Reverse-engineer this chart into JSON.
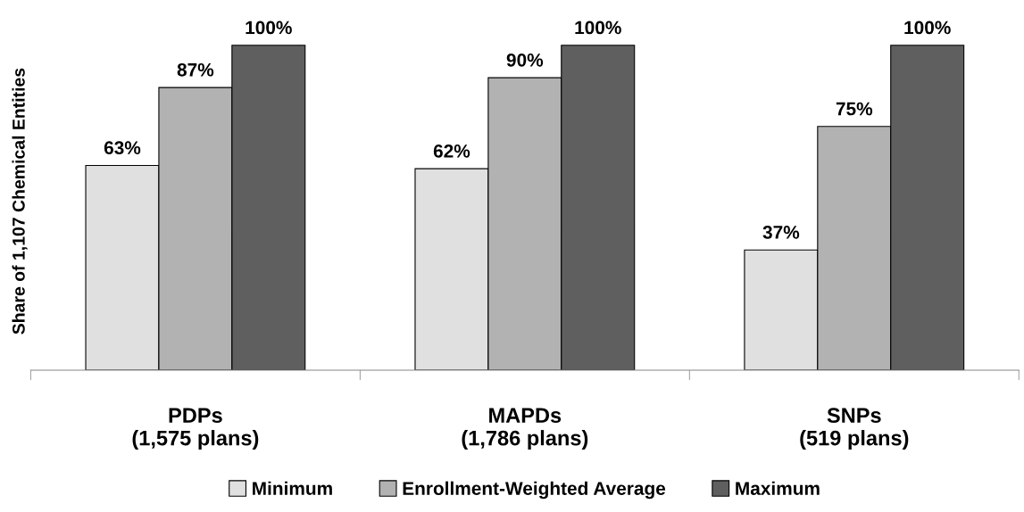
{
  "chart_data": {
    "type": "bar",
    "ylabel": "Share of 1,107 Chemical Entities",
    "categories": [
      "PDPs\n(1,575 plans)",
      "MAPDs\n(1,786 plans)",
      "SNPs\n(519 plans)"
    ],
    "series": [
      {
        "name": "Minimum",
        "color": "#e0e0e0",
        "values": [
          63,
          62,
          37
        ],
        "value_labels": [
          "63%",
          "62%",
          "37%"
        ]
      },
      {
        "name": "Enrollment-Weighted Average",
        "color": "#b2b2b2",
        "values": [
          87,
          90,
          75
        ],
        "value_labels": [
          "87%",
          "90%",
          "75%"
        ]
      },
      {
        "name": "Maximum",
        "color": "#5f5f5f",
        "values": [
          100,
          100,
          100
        ],
        "value_labels": [
          "100%",
          "100%",
          "100%"
        ]
      }
    ],
    "legend": "bottom",
    "grid": false
  }
}
